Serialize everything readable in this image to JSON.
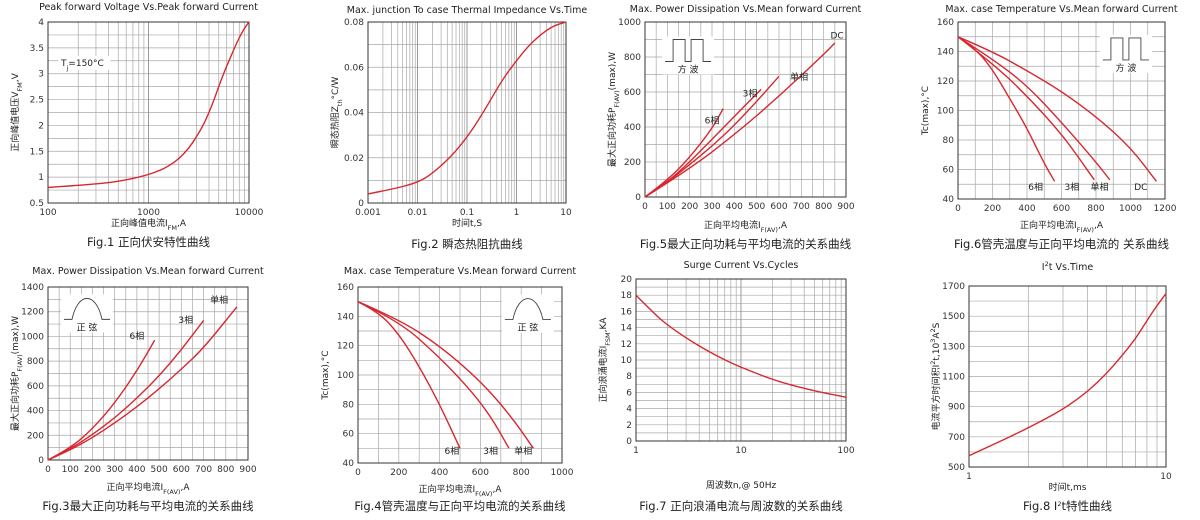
{
  "chart_data": [
    {
      "id": "fig1",
      "type": "line",
      "title": "Peak forward Voltage Vs.Peak forward Current",
      "xlabel": "正向峰值电流I",
      "xlabel_sub": "FM",
      "xlabel_unit": ",A",
      "ylabel": "正向峰值电压V",
      "ylabel_sub": "FM",
      "ylabel_unit": ",V",
      "x_scale": "log",
      "xlim": [
        100,
        10000
      ],
      "ylim": [
        0.5,
        4
      ],
      "x_ticks": [
        100,
        1000,
        10000
      ],
      "x_tick_labels": [
        "100",
        "1000",
        "10000"
      ],
      "y_ticks": [
        0.5,
        1,
        1.5,
        2,
        2.5,
        3,
        3.5,
        4
      ],
      "y_tick_labels": [
        "0.5",
        "1",
        "1.5",
        "2",
        "2.5",
        "3",
        "3.5",
        "4"
      ],
      "annotation": "T",
      "annotation_sub": "j",
      "annotation_rest": "=150°C",
      "caption": "Fig.1 正向伏安特性曲线",
      "series": [
        {
          "x": [
            100,
            200,
            400,
            700,
            1000,
            1300,
            1600,
            2000,
            2500,
            3000,
            3500,
            4000,
            4600,
            5200,
            6000,
            7000,
            8000,
            9000,
            10000
          ],
          "y": [
            0.8,
            0.84,
            0.89,
            0.97,
            1.05,
            1.13,
            1.22,
            1.35,
            1.55,
            1.78,
            2.0,
            2.25,
            2.55,
            2.85,
            3.15,
            3.45,
            3.7,
            3.88,
            4.0
          ]
        }
      ]
    },
    {
      "id": "fig2",
      "type": "line",
      "title": "Max. junction To case Thermal Impedance Vs.Time",
      "xlabel": "时间t,S",
      "ylabel": "瞬态热阻Z",
      "ylabel_sub": "th",
      "ylabel_unit": "°C/W",
      "x_scale": "log",
      "xlim": [
        0.001,
        10
      ],
      "ylim": [
        0,
        0.08
      ],
      "x_ticks": [
        0.001,
        0.01,
        0.1,
        1,
        10
      ],
      "x_tick_labels": [
        "0.001",
        "0.01",
        "0.1",
        "1",
        "10"
      ],
      "y_ticks": [
        0,
        0.02,
        0.04,
        0.06,
        0.08
      ],
      "y_tick_labels": [
        "0",
        "0.02",
        "0.04",
        "0.06",
        "0.08"
      ],
      "caption": "Fig.2 瞬态热阻抗曲线",
      "series": [
        {
          "x": [
            0.001,
            0.003,
            0.01,
            0.02,
            0.05,
            0.1,
            0.2,
            0.5,
            1,
            2,
            5,
            10
          ],
          "y": [
            0.004,
            0.006,
            0.009,
            0.013,
            0.021,
            0.029,
            0.039,
            0.054,
            0.063,
            0.071,
            0.078,
            0.08
          ]
        }
      ]
    },
    {
      "id": "fig5",
      "type": "line",
      "title": "Max. Power Dissipation Vs.Mean forward Current",
      "xlabel": "正向平均电流I",
      "xlabel_sub": "F(AV)",
      "xlabel_unit": ",A",
      "ylabel": "最大正向功耗P",
      "ylabel_sub": "F(AV)",
      "ylabel_unit": "(max),W",
      "xlim": [
        0,
        900
      ],
      "ylim": [
        0,
        1000
      ],
      "x_ticks": [
        0,
        100,
        200,
        300,
        400,
        500,
        600,
        700,
        800,
        900
      ],
      "x_tick_labels": [
        "0",
        "100",
        "200",
        "300",
        "400",
        "500",
        "600",
        "700",
        "800",
        "900"
      ],
      "y_ticks": [
        0,
        200,
        400,
        600,
        800,
        1000
      ],
      "y_tick_labels": [
        "0",
        "200",
        "400",
        "600",
        "800",
        "1000"
      ],
      "wave_type": "square",
      "wave_label": "方  波",
      "caption": "Fig.5最大正向功耗与平均电流的关系曲线",
      "series": [
        {
          "name": "6相",
          "x": [
            0,
            100,
            200,
            300,
            350
          ],
          "y": [
            0,
            95,
            225,
            390,
            505
          ]
        },
        {
          "name": "3相",
          "x": [
            0,
            100,
            200,
            300,
            400,
            520
          ],
          "y": [
            0,
            85,
            200,
            330,
            460,
            615
          ]
        },
        {
          "name": "单相",
          "x": [
            0,
            100,
            200,
            300,
            400,
            500,
            600
          ],
          "y": [
            0,
            85,
            185,
            290,
            410,
            545,
            690
          ]
        },
        {
          "name": "DC",
          "x": [
            0,
            200,
            400,
            600,
            800,
            850
          ],
          "y": [
            0,
            160,
            355,
            575,
            815,
            880
          ]
        }
      ],
      "series_labels": [
        "6相",
        "3相",
        "单相",
        "DC"
      ]
    },
    {
      "id": "fig6",
      "type": "line",
      "title": "Max. case Temperature Vs.Mean forward Current",
      "xlabel": "正向平均电流I",
      "xlabel_sub": "F(AV)",
      "xlabel_unit": ",A",
      "ylabel": "Tc(max),°C",
      "xlim": [
        0,
        1200
      ],
      "ylim": [
        40,
        160
      ],
      "x_ticks": [
        0,
        200,
        400,
        600,
        800,
        1000,
        1200
      ],
      "x_tick_labels": [
        "0",
        "200",
        "400",
        "600",
        "800",
        "1000",
        "1200"
      ],
      "y_ticks": [
        40,
        60,
        80,
        100,
        120,
        140,
        160
      ],
      "y_tick_labels": [
        "40",
        "60",
        "80",
        "100",
        "120",
        "140",
        "160"
      ],
      "wave_type": "square",
      "wave_label": "方  波",
      "caption": "Fig.6管壳温度与正向平均电流的 关系曲线",
      "series": [
        {
          "name": "6相",
          "x": [
            0,
            100,
            200,
            300,
            400,
            500,
            560
          ],
          "y": [
            150,
            142,
            128,
            108,
            88,
            64,
            52
          ]
        },
        {
          "name": "3相",
          "x": [
            0,
            200,
            400,
            600,
            700,
            790
          ],
          "y": [
            150,
            132,
            110,
            84,
            68,
            53
          ]
        },
        {
          "name": "单相",
          "x": [
            0,
            200,
            400,
            600,
            800,
            880
          ],
          "y": [
            150,
            135,
            117,
            92,
            65,
            53
          ]
        },
        {
          "name": "DC",
          "x": [
            0,
            200,
            400,
            600,
            800,
            1000,
            1150
          ],
          "y": [
            150,
            140,
            127,
            113,
            96,
            75,
            52
          ]
        }
      ],
      "series_labels": [
        "6相",
        "3相",
        "单相",
        "DC"
      ]
    },
    {
      "id": "fig3",
      "type": "line",
      "title": "Max. Power Dissipation Vs.Mean forward Current",
      "xlabel": "正向平均电流I",
      "xlabel_sub": "F(AV)",
      "xlabel_unit": ",A",
      "ylabel": "最大正向功耗P",
      "ylabel_sub": "F(AV)",
      "ylabel_unit": "(max),W",
      "xlim": [
        0,
        900
      ],
      "ylim": [
        0,
        1400
      ],
      "x_ticks": [
        0,
        100,
        200,
        300,
        400,
        500,
        600,
        700,
        800,
        900
      ],
      "x_tick_labels": [
        "0",
        "100",
        "200",
        "300",
        "400",
        "500",
        "600",
        "700",
        "800",
        "900"
      ],
      "y_ticks": [
        0,
        200,
        400,
        600,
        800,
        1000,
        1200,
        1400
      ],
      "y_tick_labels": [
        "0",
        "200",
        "400",
        "600",
        "800",
        "1000",
        "1200",
        "1400"
      ],
      "wave_type": "sine",
      "wave_label": "正  弦",
      "caption": "Fig.3最大正向功耗与平均电流的关系曲线",
      "series": [
        {
          "name": "6相",
          "x": [
            0,
            100,
            200,
            300,
            400,
            480
          ],
          "y": [
            0,
            95,
            250,
            460,
            720,
            970
          ]
        },
        {
          "name": "3相",
          "x": [
            0,
            100,
            200,
            300,
            400,
            500,
            600,
            700
          ],
          "y": [
            0,
            90,
            205,
            340,
            500,
            680,
            890,
            1130
          ]
        },
        {
          "name": "单相",
          "x": [
            0,
            100,
            200,
            300,
            400,
            500,
            600,
            700,
            850
          ],
          "y": [
            0,
            80,
            180,
            300,
            430,
            575,
            735,
            905,
            1240
          ]
        }
      ],
      "series_labels": [
        "6相",
        "3相",
        "单相"
      ]
    },
    {
      "id": "fig4",
      "type": "line",
      "title": "Max. case Temperature Vs.Mean forward Current",
      "xlabel": "正向平均电流I",
      "xlabel_sub": "F(AV)",
      "xlabel_unit": ",A",
      "ylabel": "Tc(max),°C",
      "xlim": [
        0,
        1000
      ],
      "ylim": [
        40,
        160
      ],
      "x_ticks": [
        0,
        200,
        400,
        600,
        800,
        1000
      ],
      "x_tick_labels": [
        "0",
        "200",
        "400",
        "600",
        "800",
        "1000"
      ],
      "y_ticks": [
        40,
        60,
        80,
        100,
        120,
        140,
        160
      ],
      "y_tick_labels": [
        "40",
        "60",
        "80",
        "100",
        "120",
        "140",
        "160"
      ],
      "wave_type": "sine",
      "wave_label": "正  弦",
      "caption": "Fig.4管壳温度与正向平均电流的关系曲线",
      "series": [
        {
          "name": "6相",
          "x": [
            0,
            100,
            200,
            300,
            400,
            500
          ],
          "y": [
            150,
            143,
            128,
            106,
            80,
            50
          ]
        },
        {
          "name": "3相",
          "x": [
            0,
            200,
            400,
            550,
            650,
            740
          ],
          "y": [
            150,
            137,
            112,
            90,
            72,
            50
          ]
        },
        {
          "name": "单相",
          "x": [
            0,
            200,
            400,
            600,
            750,
            860
          ],
          "y": [
            150,
            138,
            120,
            96,
            72,
            50
          ]
        }
      ],
      "series_labels": [
        "6相",
        "3相",
        "单相"
      ]
    },
    {
      "id": "fig7",
      "type": "line",
      "title": "Surge Current Vs.Cycles",
      "xlabel": "周波数n,@ 50Hz",
      "ylabel": "正向浪涌电流I",
      "ylabel_sub": "FSM",
      "ylabel_unit": ",KA",
      "x_scale": "log",
      "xlim": [
        1,
        100
      ],
      "ylim": [
        0,
        20
      ],
      "x_ticks": [
        1,
        10,
        100
      ],
      "x_tick_labels": [
        "1",
        "10",
        "100"
      ],
      "y_ticks": [
        0,
        2,
        4,
        6,
        8,
        10,
        12,
        14,
        16,
        18,
        20
      ],
      "y_tick_labels": [
        "0",
        "2",
        "4",
        "6",
        "8",
        "10",
        "12",
        "14",
        "16",
        "18",
        "20"
      ],
      "caption": "Fig.7 正向浪涌电流与周波数的关系曲线",
      "series": [
        {
          "x": [
            1,
            1.5,
            2,
            3,
            5,
            7,
            10,
            15,
            20,
            30,
            50,
            70,
            100
          ],
          "y": [
            18,
            15.7,
            14.3,
            12.7,
            11,
            10,
            9.1,
            8.2,
            7.6,
            6.9,
            6.2,
            5.8,
            5.4
          ]
        }
      ]
    },
    {
      "id": "fig8",
      "type": "line",
      "title": "I",
      "title_sup": "2",
      "title_rest": "t  Vs.Time",
      "xlabel": "时间t,ms",
      "ylabel": "电流平方时间积I",
      "ylabel_sup": "2",
      "ylabel_unit": "t,10",
      "ylabel_sup2": "3",
      "ylabel_unit2": "A",
      "ylabel_sup3": "2",
      "ylabel_unit3": "S",
      "x_scale": "log",
      "xlim": [
        1,
        10
      ],
      "ylim": [
        500,
        1700
      ],
      "x_ticks": [
        1,
        10
      ],
      "x_tick_labels": [
        "1",
        "10"
      ],
      "y_ticks": [
        500,
        700,
        900,
        1100,
        1300,
        1500,
        1700
      ],
      "y_tick_labels": [
        "500",
        "700",
        "900",
        "1100",
        "1300",
        "1500",
        "1700"
      ],
      "caption": "Fig.8 I",
      "caption_sup": "2",
      "caption_rest": "t特性曲线",
      "series": [
        {
          "x": [
            1,
            1.5,
            2,
            3,
            4,
            5,
            6,
            7,
            8,
            9,
            10
          ],
          "y": [
            575,
            680,
            760,
            880,
            1000,
            1120,
            1240,
            1350,
            1470,
            1570,
            1650
          ]
        }
      ]
    }
  ],
  "colors": {
    "curve": "#d7282f",
    "grid": "#a8a8a8",
    "axis": "#333333"
  }
}
